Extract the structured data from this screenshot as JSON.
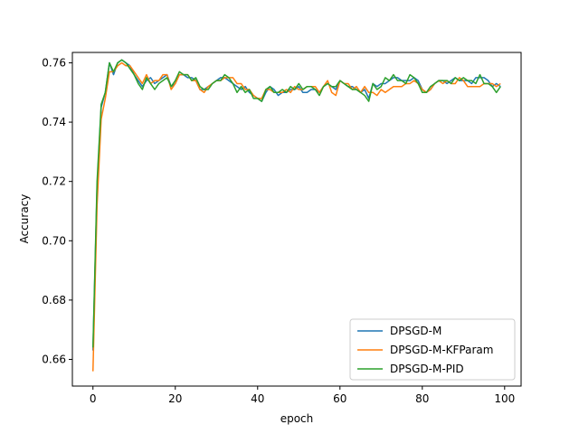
{
  "chart_data": {
    "type": "line",
    "title": "",
    "xlabel": "epoch",
    "ylabel": "Accuracy",
    "xlim": [
      -5,
      104
    ],
    "ylim": [
      0.651,
      0.7635
    ],
    "xticks": [
      0,
      20,
      40,
      60,
      80,
      100
    ],
    "yticks": [
      0.66,
      0.68,
      0.7,
      0.72,
      0.74,
      0.76
    ],
    "ytick_labels": [
      "0.66",
      "0.68",
      "0.70",
      "0.72",
      "0.74",
      "0.76"
    ],
    "grid": false,
    "legend_position": "lower-right",
    "x": [
      0,
      1,
      2,
      3,
      4,
      5,
      6,
      7,
      8,
      9,
      10,
      11,
      12,
      13,
      14,
      15,
      16,
      17,
      18,
      19,
      20,
      21,
      22,
      23,
      24,
      25,
      26,
      27,
      28,
      29,
      30,
      31,
      32,
      33,
      34,
      35,
      36,
      37,
      38,
      39,
      40,
      41,
      42,
      43,
      44,
      45,
      46,
      47,
      48,
      49,
      50,
      51,
      52,
      53,
      54,
      55,
      56,
      57,
      58,
      59,
      60,
      61,
      62,
      63,
      64,
      65,
      66,
      67,
      68,
      69,
      70,
      71,
      72,
      73,
      74,
      75,
      76,
      77,
      78,
      79,
      80,
      81,
      82,
      83,
      84,
      85,
      86,
      87,
      88,
      89,
      90,
      91,
      92,
      93,
      94,
      95,
      96,
      97,
      98,
      99
    ],
    "series": [
      {
        "name": "DPSGD-M",
        "color": "#1f77b4",
        "values": [
          0.663,
          0.718,
          0.745,
          0.75,
          0.76,
          0.756,
          0.76,
          0.761,
          0.76,
          0.759,
          0.756,
          0.754,
          0.752,
          0.754,
          0.755,
          0.753,
          0.754,
          0.755,
          0.756,
          0.752,
          0.753,
          0.756,
          0.756,
          0.755,
          0.755,
          0.754,
          0.751,
          0.751,
          0.752,
          0.753,
          0.754,
          0.755,
          0.755,
          0.754,
          0.753,
          0.752,
          0.751,
          0.752,
          0.75,
          0.749,
          0.748,
          0.747,
          0.75,
          0.752,
          0.751,
          0.749,
          0.75,
          0.75,
          0.751,
          0.751,
          0.752,
          0.75,
          0.75,
          0.751,
          0.751,
          0.75,
          0.752,
          0.753,
          0.752,
          0.751,
          0.754,
          0.753,
          0.752,
          0.752,
          0.751,
          0.75,
          0.751,
          0.748,
          0.753,
          0.752,
          0.753,
          0.753,
          0.754,
          0.755,
          0.755,
          0.754,
          0.754,
          0.754,
          0.755,
          0.754,
          0.751,
          0.75,
          0.751,
          0.753,
          0.754,
          0.754,
          0.753,
          0.754,
          0.755,
          0.754,
          0.754,
          0.754,
          0.753,
          0.755,
          0.755,
          0.755,
          0.754,
          0.752,
          0.753,
          0.752
        ]
      },
      {
        "name": "DPSGD-M-KFParam",
        "color": "#ff7f0e",
        "values": [
          0.656,
          0.712,
          0.741,
          0.748,
          0.757,
          0.757,
          0.759,
          0.76,
          0.759,
          0.759,
          0.757,
          0.755,
          0.753,
          0.756,
          0.753,
          0.754,
          0.754,
          0.756,
          0.756,
          0.751,
          0.753,
          0.756,
          0.756,
          0.756,
          0.754,
          0.754,
          0.751,
          0.75,
          0.752,
          0.753,
          0.754,
          0.754,
          0.755,
          0.755,
          0.755,
          0.753,
          0.753,
          0.751,
          0.751,
          0.749,
          0.748,
          0.748,
          0.751,
          0.751,
          0.75,
          0.75,
          0.75,
          0.751,
          0.75,
          0.752,
          0.751,
          0.751,
          0.752,
          0.752,
          0.752,
          0.75,
          0.752,
          0.754,
          0.75,
          0.749,
          0.754,
          0.753,
          0.753,
          0.751,
          0.752,
          0.75,
          0.752,
          0.75,
          0.75,
          0.749,
          0.751,
          0.75,
          0.751,
          0.752,
          0.752,
          0.752,
          0.753,
          0.753,
          0.754,
          0.753,
          0.751,
          0.75,
          0.751,
          0.753,
          0.754,
          0.753,
          0.754,
          0.753,
          0.753,
          0.755,
          0.754,
          0.752,
          0.752,
          0.752,
          0.752,
          0.753,
          0.753,
          0.753,
          0.752,
          0.753
        ]
      },
      {
        "name": "DPSGD-M-PID",
        "color": "#2ca02c",
        "values": [
          0.664,
          0.72,
          0.746,
          0.75,
          0.76,
          0.757,
          0.76,
          0.761,
          0.76,
          0.758,
          0.756,
          0.753,
          0.751,
          0.755,
          0.753,
          0.751,
          0.753,
          0.754,
          0.755,
          0.752,
          0.754,
          0.757,
          0.756,
          0.756,
          0.754,
          0.755,
          0.752,
          0.751,
          0.751,
          0.753,
          0.754,
          0.754,
          0.756,
          0.755,
          0.753,
          0.75,
          0.752,
          0.75,
          0.751,
          0.748,
          0.748,
          0.747,
          0.751,
          0.752,
          0.75,
          0.75,
          0.751,
          0.75,
          0.752,
          0.751,
          0.753,
          0.751,
          0.752,
          0.752,
          0.751,
          0.749,
          0.752,
          0.753,
          0.752,
          0.752,
          0.754,
          0.753,
          0.752,
          0.751,
          0.751,
          0.75,
          0.749,
          0.747,
          0.753,
          0.751,
          0.752,
          0.755,
          0.754,
          0.756,
          0.754,
          0.754,
          0.753,
          0.756,
          0.755,
          0.753,
          0.75,
          0.75,
          0.752,
          0.753,
          0.754,
          0.754,
          0.754,
          0.753,
          0.755,
          0.754,
          0.755,
          0.754,
          0.754,
          0.753,
          0.756,
          0.753,
          0.753,
          0.752,
          0.75,
          0.752
        ]
      }
    ]
  }
}
